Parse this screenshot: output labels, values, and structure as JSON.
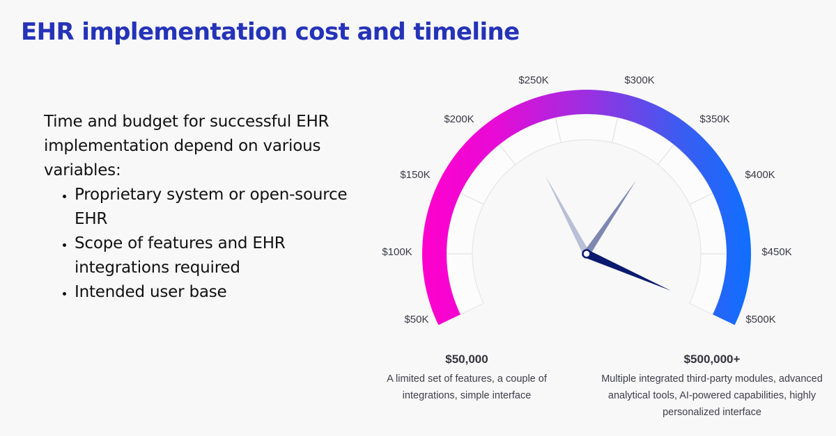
{
  "header": {
    "title": "EHR implementation cost and timeline"
  },
  "intro": {
    "paragraph": "Time and budget for successful EHR implementation depend on various variables:",
    "bullets": [
      "Proprietary system or open-source EHR",
      "Scope of features and EHR integrations required",
      "Intended user base"
    ]
  },
  "captions": {
    "left": {
      "amount": "$50,000",
      "description": "A limited set of features, a couple of integrations, simple interface"
    },
    "right": {
      "amount": "$500,000+",
      "description": "Multiple integrated third-party modules, advanced analytical tools, AI-powered capabilities, highly personalized interface"
    }
  },
  "colors": {
    "title": "#2433b8",
    "gradient_start": "#ff00cc",
    "gradient_mid": "#9b2fe0",
    "gradient_end": "#0f6fff",
    "needle_dark": "#0b1a6e",
    "needle_medium": "#7d87b0",
    "needle_light": "#b9bfd6",
    "background": "#f8f8f8"
  },
  "chart_data": {
    "type": "gauge",
    "title": "EHR implementation cost",
    "min": 50000,
    "max": 500000,
    "tick_labels": [
      "$50K",
      "$100K",
      "$150K",
      "$200K",
      "$250K",
      "$300K",
      "$350K",
      "$400K",
      "$450K",
      "$500K"
    ],
    "tick_values": [
      50000,
      100000,
      150000,
      200000,
      250000,
      300000,
      350000,
      400000,
      450000,
      500000
    ],
    "needles": [
      {
        "name": "needle-dark",
        "value": 496000
      },
      {
        "name": "needle-medium",
        "value": 341000
      },
      {
        "name": "needle-light",
        "value": 221000
      }
    ],
    "range_labels": {
      "low": "$50,000",
      "high": "$500,000+"
    }
  }
}
